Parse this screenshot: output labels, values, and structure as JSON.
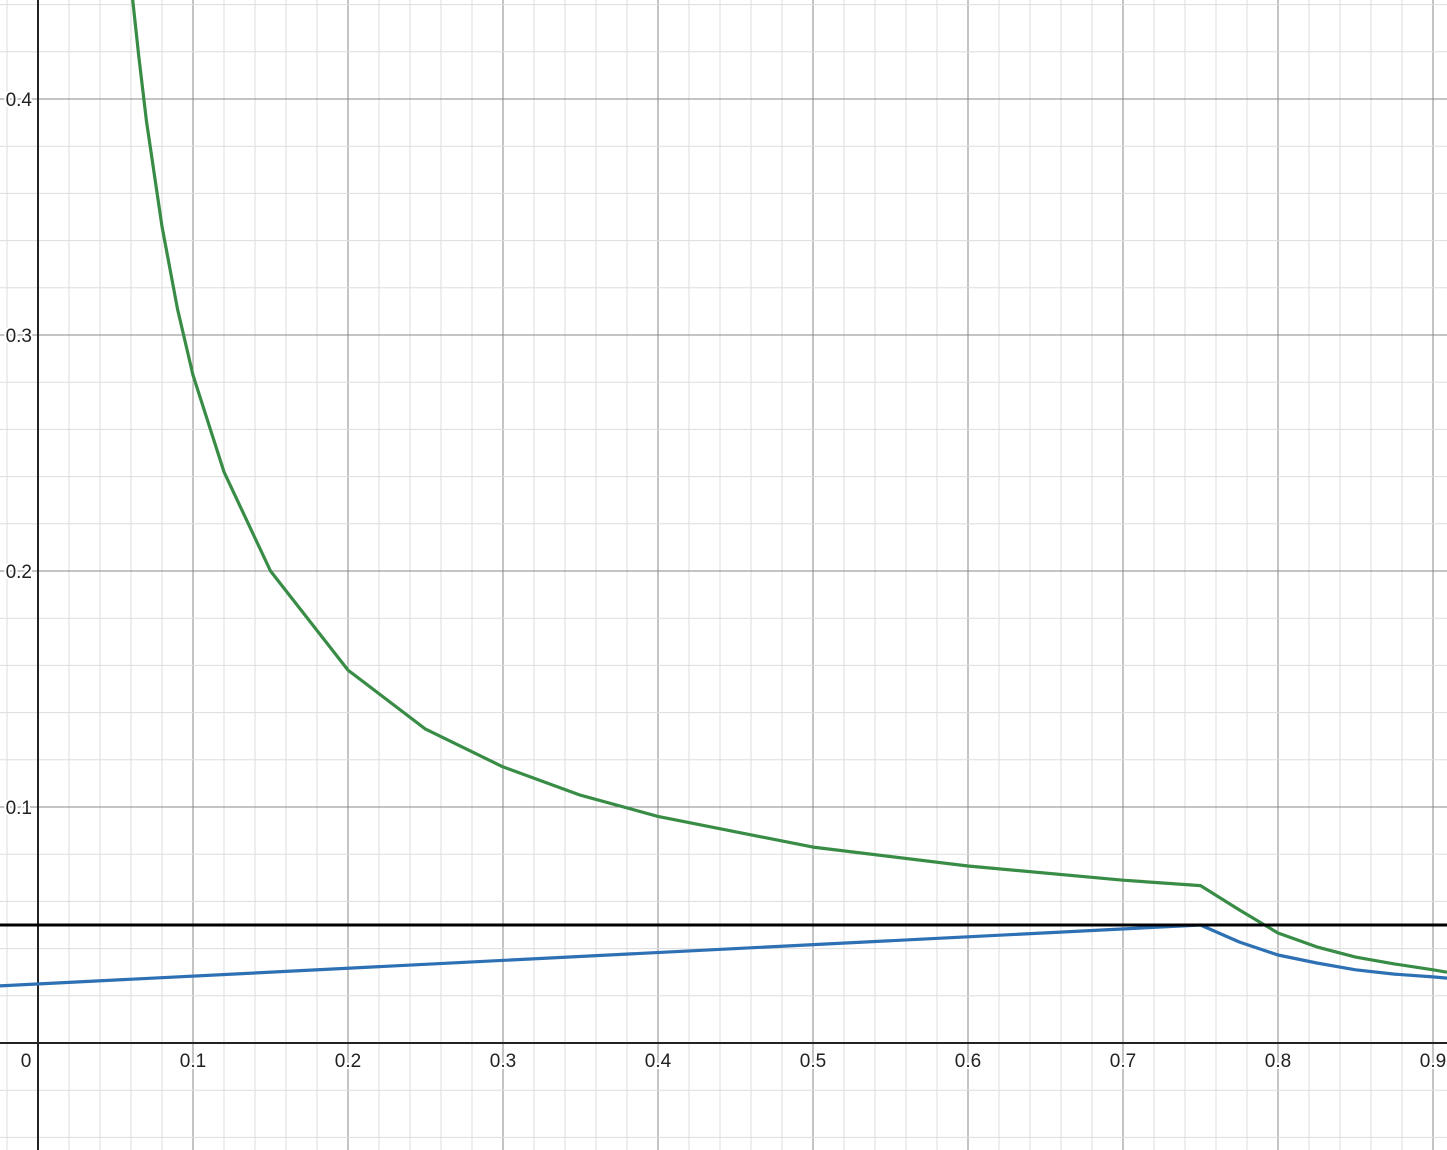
{
  "chart_data": {
    "type": "line",
    "title": "",
    "xlabel": "",
    "ylabel": "",
    "xlim": [
      -0.0245,
      0.909
    ],
    "ylim": [
      -0.0453,
      0.442
    ],
    "grid": true,
    "minor_grid_step": 0.02,
    "major_grid_step": 0.1,
    "x_ticks": [
      "0",
      "0.1",
      "0.2",
      "0.3",
      "0.4",
      "0.5",
      "0.6",
      "0.7",
      "0.8",
      "0.9"
    ],
    "x_tick_values": [
      0,
      0.1,
      0.2,
      0.3,
      0.4,
      0.5,
      0.6,
      0.7,
      0.8,
      0.9
    ],
    "y_ticks": [
      "0.1",
      "0.2",
      "0.3",
      "0.4"
    ],
    "y_tick_values": [
      0.1,
      0.2,
      0.3,
      0.4
    ],
    "series": [
      {
        "color": "#2d70b3",
        "x": [
          -0.0245,
          0.75,
          0.775,
          0.8,
          0.825,
          0.85,
          0.875,
          0.9,
          0.909
        ],
        "y": [
          0.0242,
          0.05,
          0.0428,
          0.0373,
          0.0339,
          0.031,
          0.0292,
          0.028,
          0.0275
        ]
      },
      {
        "color": "#388c46",
        "x": [
          0.0611,
          0.065,
          0.07,
          0.08,
          0.09,
          0.1,
          0.12,
          0.15,
          0.2,
          0.25,
          0.3,
          0.35,
          0.4,
          0.5,
          0.6,
          0.7,
          0.75,
          0.775,
          0.8,
          0.825,
          0.85,
          0.875,
          0.9,
          0.909
        ],
        "y": [
          0.442,
          0.418,
          0.3905,
          0.346,
          0.311,
          0.283,
          0.242,
          0.2,
          0.158,
          0.133,
          0.117,
          0.105,
          0.096,
          0.083,
          0.075,
          0.069,
          0.0667,
          0.0564,
          0.0466,
          0.0407,
          0.0364,
          0.0335,
          0.031,
          0.03
        ]
      },
      {
        "color": "#000000",
        "x": [
          -0.0245,
          0.909
        ],
        "y": [
          0.05,
          0.05
        ]
      }
    ]
  }
}
